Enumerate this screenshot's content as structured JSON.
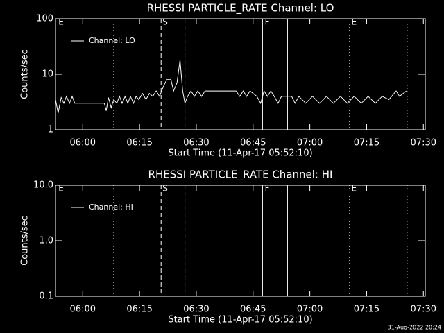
{
  "chart_data": [
    {
      "type": "line",
      "title": "RHESSI PARTICLE_RATE Channel: LO",
      "x_label": "Start Time (11-Apr-17 05:52:10)",
      "y_label": "Counts/sec",
      "log_y": true,
      "legend": "upper left",
      "background": "#000000",
      "xlim": [
        352.8,
        450.5
      ],
      "ylim": [
        1,
        100
      ],
      "xticks": [
        {
          "value": 360,
          "label": "06:00"
        },
        {
          "value": 375,
          "label": "06:15"
        },
        {
          "value": 390,
          "label": "06:30"
        },
        {
          "value": 405,
          "label": "06:45"
        },
        {
          "value": 420,
          "label": "07:00"
        },
        {
          "value": 435,
          "label": "07:15"
        },
        {
          "value": 450,
          "label": "07:30"
        }
      ],
      "yticks": [
        1,
        10,
        100
      ],
      "vlines": [
        {
          "x": 368.2,
          "style": "dotted"
        },
        {
          "x": 380.7,
          "style": "dashed"
        },
        {
          "x": 387.0,
          "style": "dashed"
        },
        {
          "x": 407.5,
          "style": "solid"
        },
        {
          "x": 414.1,
          "style": "solid"
        },
        {
          "x": 430.5,
          "style": "dotted"
        },
        {
          "x": 445.7,
          "style": "dotted"
        }
      ],
      "annotations": [
        {
          "text": "E",
          "x": 353.4
        },
        {
          "text": "S",
          "x": 380.9
        },
        {
          "text": "F",
          "x": 407.9
        },
        {
          "text": "E",
          "x": 430.8
        }
      ],
      "series": [
        {
          "name": "Channel: LO",
          "color": "#ffffff",
          "x": [
            352.8,
            353.5,
            354.3,
            355.0,
            355.7,
            356.5,
            357.2,
            357.9,
            365.7,
            366.2,
            366.8,
            367.5,
            368.2,
            369.0,
            369.7,
            370.4,
            371.2,
            371.9,
            372.6,
            373.4,
            374.1,
            374.8,
            375.8,
            376.7,
            377.6,
            378.5,
            379.4,
            380.3,
            381.3,
            382.2,
            383.3,
            384.0,
            384.9,
            385.7,
            386.4,
            387.0,
            387.7,
            388.6,
            389.5,
            390.4,
            391.4,
            392.3,
            393.2,
            400.5,
            401.5,
            402.4,
            403.3,
            404.2,
            406.0,
            407.0,
            407.9,
            408.8,
            409.7,
            410.6,
            411.6,
            412.5,
            415.2,
            416.1,
            417.1,
            418.9,
            420.7,
            422.6,
            424.4,
            426.2,
            428.1,
            429.9,
            431.7,
            433.6,
            435.4,
            437.3,
            439.1,
            440.9,
            442.8,
            443.7,
            445.5
          ],
          "values": [
            3.5,
            2.0,
            3.8,
            3.0,
            4,
            3,
            4,
            3,
            3,
            2.2,
            3.8,
            2.5,
            3.5,
            3,
            4,
            3,
            4,
            3,
            4,
            3,
            4,
            3.5,
            4.5,
            3.5,
            4.5,
            4,
            5,
            4,
            6,
            8,
            8,
            5,
            7,
            18,
            5,
            3,
            4,
            5,
            4,
            5,
            4,
            5,
            5,
            5,
            4,
            5,
            4,
            5,
            4,
            3,
            5,
            4,
            5,
            4,
            3,
            4,
            4,
            3,
            4,
            3,
            4,
            3,
            4,
            3,
            4,
            3,
            4,
            3,
            4,
            3,
            4,
            3.5,
            5,
            4,
            5
          ]
        }
      ]
    },
    {
      "type": "line",
      "title": "RHESSI PARTICLE_RATE Channel: HI",
      "x_label": "Start Time (11-Apr-17 05:52:10)",
      "y_label": "Counts/sec",
      "log_y": true,
      "legend": "upper left",
      "background": "#000000",
      "xlim": [
        352.8,
        450.5
      ],
      "ylim": [
        0.1,
        10
      ],
      "xticks": [
        {
          "value": 360,
          "label": "06:00"
        },
        {
          "value": 375,
          "label": "06:15"
        },
        {
          "value": 390,
          "label": "06:30"
        },
        {
          "value": 405,
          "label": "06:45"
        },
        {
          "value": 420,
          "label": "07:00"
        },
        {
          "value": 435,
          "label": "07:15"
        },
        {
          "value": 450,
          "label": "07:30"
        }
      ],
      "yticks": [
        0.1,
        {
          "value": 1,
          "label": "1.0"
        },
        {
          "value": 10,
          "label": "10.0"
        }
      ],
      "vlines": [
        {
          "x": 368.2,
          "style": "dotted"
        },
        {
          "x": 380.7,
          "style": "dashed"
        },
        {
          "x": 387.0,
          "style": "dashed"
        },
        {
          "x": 407.5,
          "style": "solid"
        },
        {
          "x": 414.1,
          "style": "solid"
        },
        {
          "x": 430.5,
          "style": "dotted"
        },
        {
          "x": 445.7,
          "style": "dotted"
        }
      ],
      "annotations": [
        {
          "text": "E",
          "x": 353.4
        },
        {
          "text": "S",
          "x": 380.9
        },
        {
          "text": "F",
          "x": 407.9
        },
        {
          "text": "E",
          "x": 430.8
        }
      ],
      "series": [
        {
          "name": "Channel: HI",
          "color": "#ffffff",
          "x": [],
          "values": []
        }
      ]
    }
  ],
  "footer": "31-Aug-2022 20:24"
}
